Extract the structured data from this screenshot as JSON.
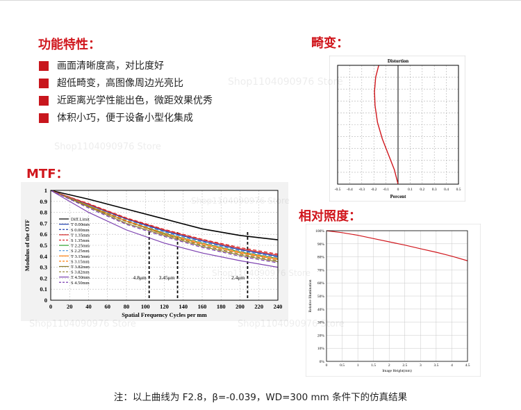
{
  "headings": {
    "features": "功能特性：",
    "distortion": "畸变：",
    "mtf": "MTF：",
    "illumination": "相对照度："
  },
  "features": [
    "画面清晰度高，对比度好",
    "超低畸变，高图像周边光亮比",
    "近距离光学性能出色，微距效果优秀",
    "体积小巧，便于设备小型化集成"
  ],
  "watermark": "Shop1104090976 Store",
  "note": "注：以上曲线为 F2.8，β=-0.039，WD=300 mm 条件下的仿真结果",
  "colors": {
    "accent": "#d0161c",
    "bullet": "#c8161d"
  },
  "chart_data": [
    {
      "type": "line",
      "name": "mtf",
      "xlabel": "Spatial Frequency Cycles per mm",
      "ylabel": "Modulus of the OTF",
      "xlim": [
        0,
        240
      ],
      "ylim": [
        0,
        1
      ],
      "xticks": [
        "0",
        "20",
        "40",
        "60",
        "80",
        "100",
        "120",
        "140",
        "160",
        "180",
        "200",
        "220",
        "240"
      ],
      "yticks": [
        "0",
        "0.1",
        "0.2",
        "0.3",
        "0.4",
        "0.5",
        "0.6",
        "0.7",
        "0.8",
        "0.9",
        "1"
      ],
      "grid": true,
      "legend_position": "center-left",
      "annotations": [
        {
          "text": "4.8μm",
          "x": 104
        },
        {
          "text": "3.45μm",
          "x": 134
        },
        {
          "text": "2.4μm",
          "x": 208
        }
      ],
      "series": [
        {
          "name": "Diff.Limit",
          "color": "#000000",
          "dash": "solid",
          "x": [
            0,
            40,
            80,
            120,
            160,
            200,
            240
          ],
          "y": [
            1,
            0.92,
            0.83,
            0.74,
            0.65,
            0.59,
            0.55
          ]
        },
        {
          "name": "T 0.00mm",
          "color": "#1f3fae",
          "dash": "solid",
          "x": [
            0,
            40,
            80,
            120,
            160,
            200,
            240
          ],
          "y": [
            1,
            0.87,
            0.74,
            0.63,
            0.54,
            0.46,
            0.4
          ]
        },
        {
          "name": "S 0.00mm",
          "color": "#1f3fae",
          "dash": "dash",
          "x": [
            0,
            40,
            80,
            120,
            160,
            200,
            240
          ],
          "y": [
            1,
            0.87,
            0.74,
            0.63,
            0.54,
            0.46,
            0.4
          ]
        },
        {
          "name": "T 1.35mm",
          "color": "#d62728",
          "dash": "solid",
          "x": [
            0,
            40,
            80,
            120,
            160,
            200,
            240
          ],
          "y": [
            1,
            0.875,
            0.745,
            0.64,
            0.55,
            0.47,
            0.41
          ]
        },
        {
          "name": "S 1.35mm",
          "color": "#d62728",
          "dash": "dash",
          "x": [
            0,
            40,
            80,
            120,
            160,
            200,
            240
          ],
          "y": [
            1,
            0.88,
            0.75,
            0.645,
            0.555,
            0.48,
            0.42
          ]
        },
        {
          "name": "T 2.25mm",
          "color": "#2ca02c",
          "dash": "solid",
          "x": [
            0,
            40,
            80,
            120,
            160,
            200,
            240
          ],
          "y": [
            1,
            0.86,
            0.72,
            0.61,
            0.52,
            0.44,
            0.38
          ]
        },
        {
          "name": "S 2.25mm",
          "color": "#4a90d9",
          "dash": "dash",
          "x": [
            0,
            40,
            80,
            120,
            160,
            200,
            240
          ],
          "y": [
            1,
            0.865,
            0.73,
            0.62,
            0.53,
            0.45,
            0.39
          ]
        },
        {
          "name": "T 3.15mm",
          "color": "#ff7f0e",
          "dash": "solid",
          "x": [
            0,
            40,
            80,
            120,
            160,
            200,
            240
          ],
          "y": [
            1,
            0.855,
            0.72,
            0.6,
            0.51,
            0.43,
            0.37
          ]
        },
        {
          "name": "S 3.15mm",
          "color": "#ff7f0e",
          "dash": "dash",
          "x": [
            0,
            40,
            80,
            120,
            160,
            200,
            240
          ],
          "y": [
            1,
            0.86,
            0.725,
            0.61,
            0.52,
            0.44,
            0.38
          ]
        },
        {
          "name": "T 3.82mm",
          "color": "#8c7b2a",
          "dash": "solid",
          "x": [
            0,
            40,
            80,
            120,
            160,
            200,
            240
          ],
          "y": [
            1,
            0.85,
            0.7,
            0.59,
            0.49,
            0.41,
            0.35
          ]
        },
        {
          "name": "S 3.82mm",
          "color": "#8c7b2a",
          "dash": "dash",
          "x": [
            0,
            40,
            80,
            120,
            160,
            200,
            240
          ],
          "y": [
            1,
            0.855,
            0.715,
            0.6,
            0.5,
            0.42,
            0.36
          ]
        },
        {
          "name": "T 4.50mm",
          "color": "#7b3fb0",
          "dash": "solid",
          "x": [
            0,
            40,
            80,
            120,
            160,
            200,
            240
          ],
          "y": [
            1,
            0.8,
            0.64,
            0.52,
            0.43,
            0.36,
            0.3
          ]
        },
        {
          "name": "S 4.50mm",
          "color": "#7b3fb0",
          "dash": "dash",
          "x": [
            0,
            40,
            80,
            120,
            160,
            200,
            240
          ],
          "y": [
            1,
            0.84,
            0.69,
            0.58,
            0.48,
            0.4,
            0.34
          ]
        }
      ]
    },
    {
      "type": "line",
      "name": "distortion",
      "title": "Distortion",
      "xlabel": "Percent",
      "ylabel": "",
      "xlim": [
        -0.5,
        0.5
      ],
      "ylim": [
        0,
        1
      ],
      "xticks": [
        "-0.5",
        "-0.4",
        "-0.3",
        "-0.2",
        "-0.1",
        "0",
        "0.1",
        "0.2",
        "0.3",
        "0.4",
        "0.5"
      ],
      "grid": true,
      "series": [
        {
          "name": "",
          "color": "#d0161c",
          "x": [
            0,
            -0.03,
            -0.08,
            -0.13,
            -0.17,
            -0.19,
            -0.195,
            -0.185,
            -0.16
          ],
          "y": [
            0,
            0.12,
            0.25,
            0.38,
            0.52,
            0.66,
            0.78,
            0.9,
            1.0
          ]
        }
      ]
    },
    {
      "type": "line",
      "name": "relative-illumination",
      "xlabel": "Image Height(mm)",
      "ylabel": "Relative Illumination",
      "xlim": [
        0,
        4.5
      ],
      "ylim": [
        0,
        100
      ],
      "xticks": [
        "0",
        "0.5",
        "1",
        "1.5",
        "2",
        "2.5",
        "3",
        "3.5",
        "4",
        "4.5"
      ],
      "yticks": [
        "0%",
        "10%",
        "20%",
        "30%",
        "40%",
        "50%",
        "60%",
        "70%",
        "80%",
        "90%",
        "100%"
      ],
      "grid": true,
      "series": [
        {
          "name": "",
          "color": "#d0161c",
          "x": [
            0,
            0.5,
            1,
            1.5,
            2,
            2.5,
            3,
            3.5,
            4,
            4.5
          ],
          "y": [
            100,
            98.5,
            96.5,
            94,
            91.5,
            89,
            86.2,
            83.5,
            80.5,
            77
          ]
        }
      ]
    }
  ]
}
